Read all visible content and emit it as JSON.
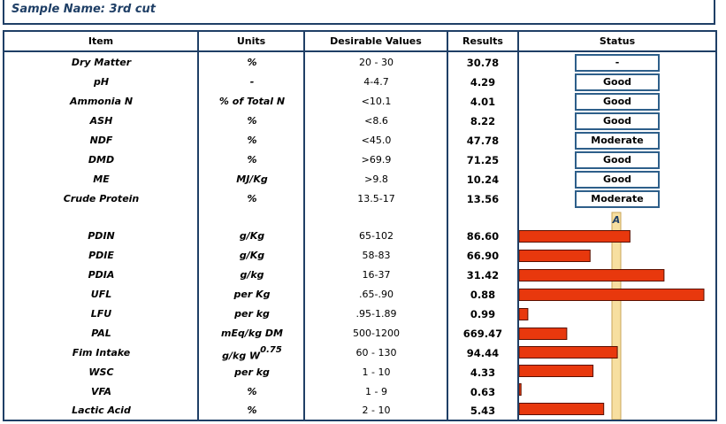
{
  "sample": {
    "title": "Sample Name: 3rd cut"
  },
  "headers": {
    "item": "Item",
    "units": "Units",
    "desirable": "Desirable Values",
    "results": "Results",
    "status": "Status"
  },
  "rows_top": [
    {
      "item": "Dry Matter",
      "units": "%",
      "desirable": "20 - 30",
      "result": "30.78",
      "status": "-"
    },
    {
      "item": "pH",
      "units": "-",
      "desirable": "4-4.7",
      "result": "4.29",
      "status": "Good"
    },
    {
      "item": "Ammonia N",
      "units": "% of Total N",
      "desirable": "<10.1",
      "result": "4.01",
      "status": "Good"
    },
    {
      "item": "ASH",
      "units": "%",
      "desirable": "<8.6",
      "result": "8.22",
      "status": "Good"
    },
    {
      "item": "NDF",
      "units": "%",
      "desirable": "<45.0",
      "result": "47.78",
      "status": "Moderate"
    },
    {
      "item": "DMD",
      "units": "%",
      "desirable": ">69.9",
      "result": "71.25",
      "status": "Good"
    },
    {
      "item": "ME",
      "units": "MJ/Kg",
      "desirable": ">9.8",
      "result": "10.24",
      "status": "Good"
    },
    {
      "item": "Crude Protein",
      "units": "%",
      "desirable": "13.5-17",
      "result": "13.56",
      "status": "Moderate"
    }
  ],
  "rows_bottom": [
    {
      "item": "PDIN",
      "units": "g/Kg",
      "desirable": "65-102",
      "result": "86.60"
    },
    {
      "item": "PDIE",
      "units": "g/Kg",
      "desirable": "58-83",
      "result": "66.90"
    },
    {
      "item": "PDIA",
      "units": "g/kg",
      "desirable": "16-37",
      "result": "31.42"
    },
    {
      "item": "UFL",
      "units": "per Kg",
      "desirable": ".65-.90",
      "result": "0.88"
    },
    {
      "item": "LFU",
      "units": "per kg",
      "desirable": ".95-1.89",
      "result": "0.99"
    },
    {
      "item": "PAL",
      "units": "mEq/kg DM",
      "desirable": "500-1200",
      "result": "669.47"
    },
    {
      "item": "Fim Intake",
      "units": "g/kg W",
      "units_sup": "0.75",
      "desirable": "60 - 130",
      "result": "94.44"
    },
    {
      "item": "WSC",
      "units": "per kg",
      "desirable": "1 - 10",
      "result": "4.33"
    },
    {
      "item": "VFA",
      "units": "%",
      "desirable": "1 - 9",
      "result": "0.63"
    },
    {
      "item": "Lactic Acid",
      "units": "%",
      "desirable": "2 - 10",
      "result": "5.43"
    }
  ],
  "chart_data": {
    "type": "bar",
    "orientation": "horizontal",
    "categories": [
      "PDIN",
      "PDIE",
      "PDIA",
      "UFL",
      "LFU",
      "PAL",
      "Fim Intake",
      "WSC",
      "VFA",
      "Lactic Acid"
    ],
    "values": [
      1.14,
      0.73,
      1.49,
      1.9,
      0.09,
      0.49,
      1.01,
      0.76,
      0.02,
      0.87
    ],
    "reference_label": "A",
    "bar_color": "#e8380d",
    "reference_color": "#f7dfa0"
  },
  "colors": {
    "frame": "#1f3f66",
    "title": "#1f3f66",
    "status_border": "#2e5f8a"
  }
}
